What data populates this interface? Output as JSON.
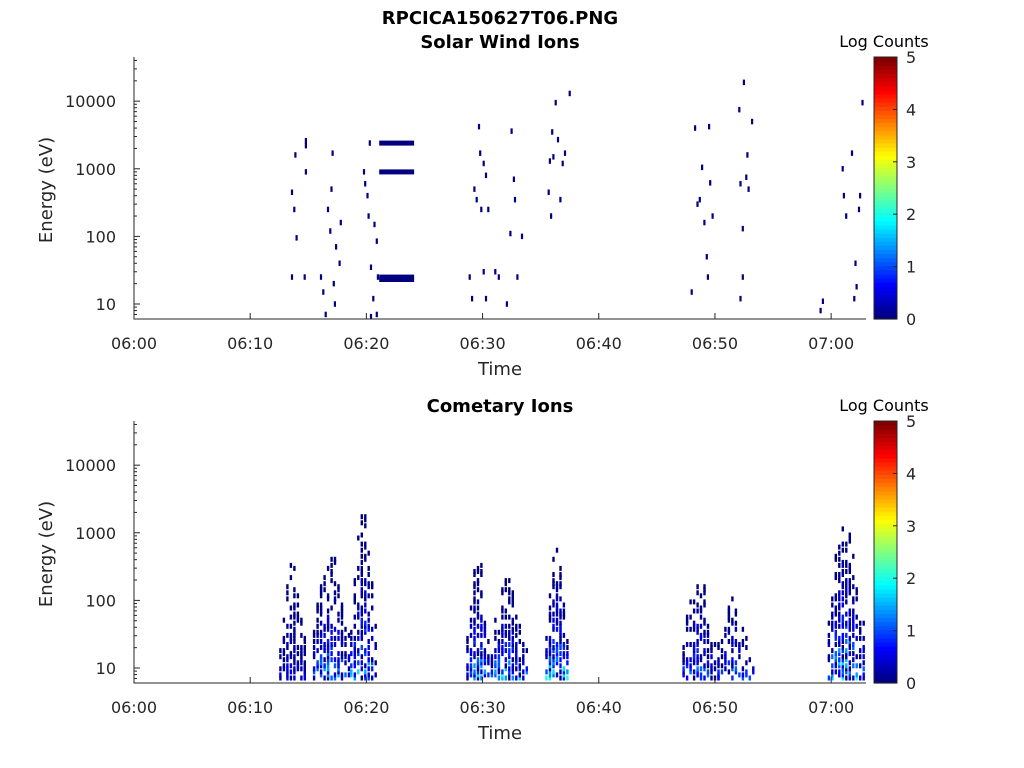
{
  "figure": {
    "title": "RPCICA150627T06.PNG"
  },
  "chart_data": [
    {
      "type": "heatmap",
      "title": "Solar Wind Ions",
      "xlabel": "Time",
      "ylabel": "Energy (eV)",
      "xlim": [
        "06:00",
        "07:03"
      ],
      "ylim": [
        6,
        45000
      ],
      "yscale": "log",
      "x_ticks": [
        "06:00",
        "06:10",
        "06:20",
        "06:30",
        "06:40",
        "06:50",
        "07:00"
      ],
      "y_ticks": [
        "10",
        "100",
        "1000",
        "10000"
      ],
      "colorbar": {
        "label": "Log Counts",
        "range": [
          0,
          5
        ],
        "ticks": [
          "0",
          "1",
          "2",
          "3",
          "4",
          "5"
        ],
        "colormap": "jet"
      },
      "cells": [
        [
          13.5,
          450,
          0
        ],
        [
          13.7,
          250,
          0
        ],
        [
          13.9,
          95,
          0
        ],
        [
          13.8,
          1600,
          0
        ],
        [
          14.7,
          2600,
          0
        ],
        [
          14.7,
          2200,
          0
        ],
        [
          14.7,
          900,
          0
        ],
        [
          13.5,
          25,
          0
        ],
        [
          14.6,
          25,
          0
        ],
        [
          16.0,
          25,
          0
        ],
        [
          16.2,
          15,
          0
        ],
        [
          16.4,
          7,
          0
        ],
        [
          16.6,
          250,
          0
        ],
        [
          16.8,
          120,
          0
        ],
        [
          16.9,
          500,
          0
        ],
        [
          17.0,
          1700,
          0
        ],
        [
          17.1,
          20,
          0
        ],
        [
          17.2,
          10,
          0
        ],
        [
          17.3,
          70,
          0
        ],
        [
          17.6,
          40,
          0
        ],
        [
          17.7,
          160,
          0
        ],
        [
          19.7,
          900,
          0
        ],
        [
          19.8,
          600,
          0
        ],
        [
          20.0,
          400,
          0
        ],
        [
          20.1,
          200,
          0
        ],
        [
          20.2,
          2400,
          0
        ],
        [
          20.3,
          35,
          0
        ],
        [
          20.5,
          12,
          0
        ],
        [
          20.6,
          150,
          0
        ],
        [
          20.8,
          85,
          0
        ],
        [
          20.9,
          25,
          0
        ],
        [
          20.3,
          6.5,
          0
        ],
        [
          20.8,
          7,
          0
        ],
        [
          28.8,
          25,
          0
        ],
        [
          29.0,
          12,
          0
        ],
        [
          29.2,
          500,
          0
        ],
        [
          29.4,
          350,
          0
        ],
        [
          29.6,
          4200,
          0
        ],
        [
          29.7,
          1700,
          0
        ],
        [
          29.8,
          250,
          0
        ],
        [
          30.0,
          1200,
          0
        ],
        [
          30.2,
          800,
          0
        ],
        [
          30.4,
          250,
          0
        ],
        [
          30.0,
          30,
          0
        ],
        [
          30.2,
          12,
          0
        ],
        [
          31.0,
          30,
          0
        ],
        [
          31.3,
          25,
          0
        ],
        [
          32.0,
          10,
          0
        ],
        [
          32.3,
          110,
          0
        ],
        [
          32.4,
          3600,
          0
        ],
        [
          32.6,
          700,
          0
        ],
        [
          32.7,
          350,
          0
        ],
        [
          32.9,
          25,
          0
        ],
        [
          33.3,
          100,
          0
        ],
        [
          35.6,
          450,
          0
        ],
        [
          35.7,
          1300,
          0
        ],
        [
          35.8,
          200,
          0
        ],
        [
          35.9,
          3500,
          0
        ],
        [
          36.0,
          1500,
          0
        ],
        [
          36.2,
          9500,
          0
        ],
        [
          36.4,
          2700,
          0
        ],
        [
          36.6,
          350,
          0
        ],
        [
          36.8,
          1200,
          0
        ],
        [
          37.0,
          1700,
          0
        ],
        [
          37.4,
          13000,
          0
        ],
        [
          47.9,
          15,
          0
        ],
        [
          48.2,
          4000,
          0
        ],
        [
          48.4,
          300,
          0
        ],
        [
          48.6,
          350,
          0
        ],
        [
          48.8,
          1050,
          0
        ],
        [
          49.0,
          160,
          0
        ],
        [
          49.2,
          50,
          0
        ],
        [
          49.4,
          4200,
          0
        ],
        [
          49.5,
          620,
          0
        ],
        [
          49.7,
          200,
          0
        ],
        [
          49.3,
          25,
          0
        ],
        [
          52.0,
          7500,
          0
        ],
        [
          52.1,
          600,
          0
        ],
        [
          52.3,
          130,
          0
        ],
        [
          52.4,
          19000,
          0
        ],
        [
          52.6,
          750,
          0
        ],
        [
          52.7,
          1600,
          0
        ],
        [
          52.8,
          500,
          0
        ],
        [
          53.1,
          5000,
          0
        ],
        [
          52.3,
          25,
          0
        ],
        [
          52.1,
          12,
          0
        ],
        [
          59.0,
          8,
          0
        ],
        [
          59.2,
          11,
          0
        ],
        [
          60.9,
          1000,
          0
        ],
        [
          61.0,
          400,
          0
        ],
        [
          61.2,
          200,
          0
        ],
        [
          61.7,
          1700,
          0
        ],
        [
          62.0,
          40,
          0
        ],
        [
          62.3,
          250,
          0
        ],
        [
          62.4,
          400,
          0
        ],
        [
          62.6,
          9500,
          0
        ],
        [
          61.9,
          12,
          0
        ],
        [
          62.1,
          18,
          0
        ]
      ],
      "bands": [
        [
          21.1,
          24.1,
          2400,
          0
        ],
        [
          21.1,
          24.1,
          900,
          0
        ],
        [
          21.1,
          24.1,
          25,
          0
        ],
        [
          21.1,
          24.1,
          23,
          0
        ]
      ]
    },
    {
      "type": "heatmap",
      "title": "Cometary Ions",
      "xlabel": "Time",
      "ylabel": "Energy (eV)",
      "xlim": [
        "06:00",
        "07:03"
      ],
      "ylim": [
        6,
        45000
      ],
      "yscale": "log",
      "x_ticks": [
        "06:00",
        "06:10",
        "06:20",
        "06:30",
        "06:40",
        "06:50",
        "07:00"
      ],
      "y_ticks": [
        "10",
        "100",
        "1000",
        "10000"
      ],
      "colorbar": {
        "label": "Log Counts",
        "range": [
          0,
          5
        ],
        "ticks": [
          "0",
          "1",
          "2",
          "3",
          "4",
          "5"
        ],
        "colormap": "jet"
      },
      "clusters": [
        {
          "t0": 12.5,
          "t1": 14.8,
          "e_top": 350,
          "e_bot": 7,
          "density": 0.55,
          "peak": 0.6
        },
        {
          "t0": 15.4,
          "t1": 18.6,
          "e_top": 600,
          "e_bot": 7,
          "density": 0.55,
          "peak": 1.4
        },
        {
          "t0": 18.6,
          "t1": 21.0,
          "e_top": 2000,
          "e_bot": 7,
          "density": 0.45,
          "peak": 1.6
        },
        {
          "t0": 28.6,
          "t1": 30.7,
          "e_top": 450,
          "e_bot": 7,
          "density": 0.55,
          "peak": 1.6
        },
        {
          "t0": 30.7,
          "t1": 33.7,
          "e_top": 220,
          "e_bot": 7,
          "density": 0.55,
          "peak": 1.7
        },
        {
          "t0": 35.4,
          "t1": 37.4,
          "e_top": 600,
          "e_bot": 7,
          "density": 0.6,
          "peak": 1.9
        },
        {
          "t0": 47.2,
          "t1": 50.2,
          "e_top": 250,
          "e_bot": 7,
          "density": 0.5,
          "peak": 1.3
        },
        {
          "t0": 50.2,
          "t1": 53.2,
          "e_top": 110,
          "e_bot": 7,
          "density": 0.35,
          "peak": 1.2
        },
        {
          "t0": 59.7,
          "t1": 62.8,
          "e_top": 1600,
          "e_bot": 7,
          "density": 0.6,
          "peak": 1.8
        }
      ]
    }
  ]
}
